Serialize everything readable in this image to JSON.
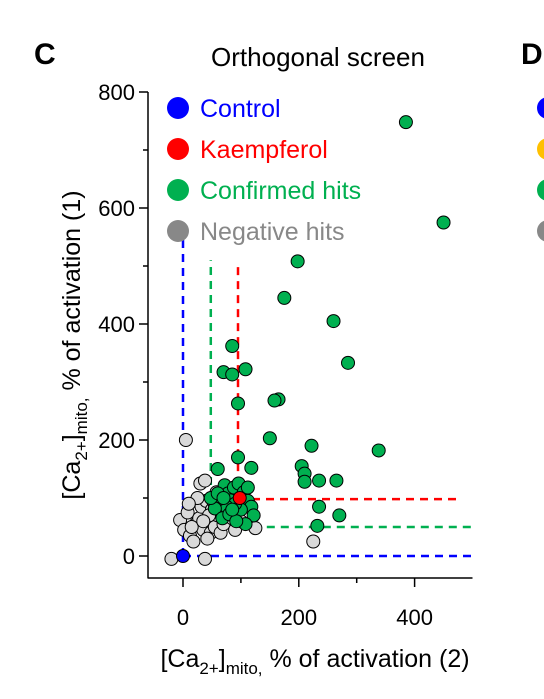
{
  "panel_label": "C",
  "next_panel_label": "D",
  "chart_data": {
    "type": "scatter",
    "title": "Orthogonal screen",
    "xlabel": {
      "base": "[Ca",
      "sub1": "2+",
      "mid": "]",
      "sub2": "mito,",
      "rest": " % of activation (2)"
    },
    "ylabel": {
      "base": "[Ca",
      "sub1": "2+",
      "mid": "]",
      "sub2": "mito,",
      "rest": " % of activation (1)"
    },
    "xlim": [
      -30,
      500
    ],
    "ylim": [
      -25,
      800
    ],
    "x_ticks": [
      0,
      200,
      400
    ],
    "x_tick_labels": [
      "0",
      "200",
      "400"
    ],
    "y_ticks": [
      0,
      200,
      400,
      600,
      800
    ],
    "y_tick_labels": [
      "0",
      "200",
      "400",
      "600",
      "800"
    ],
    "grid": false,
    "legend_position": "top-left",
    "legend": [
      {
        "label": "Control",
        "color": "#0000ff"
      },
      {
        "label": "Kaempferol",
        "color": "#ff0000"
      },
      {
        "label": "Confirmed hits",
        "color": "#00b050"
      },
      {
        "label": "Negative hits",
        "color": "#888888"
      }
    ],
    "next_panel_legend_colors": [
      "#0000ff",
      "#ffc000",
      "#00b050",
      "#888888"
    ],
    "threshold_lines": [
      {
        "series": "Control",
        "color": "#0000ff",
        "x": 0,
        "y": 0,
        "x_end": 500,
        "y_end": 560
      },
      {
        "series": "Confirmed hits",
        "color": "#00b050",
        "x": 48,
        "y": 50,
        "x_end": 500,
        "y_end": 510
      },
      {
        "series": "Kaempferol",
        "color": "#ff0000",
        "x": 95,
        "y": 98,
        "x_end": 480,
        "y_end": 500
      }
    ],
    "series": [
      {
        "name": "Negative hits",
        "color": "#d9d9d9",
        "points": [
          [
            -20,
            -5
          ],
          [
            5,
            200
          ],
          [
            38,
            -5
          ],
          [
            -5,
            62
          ],
          [
            2,
            45
          ],
          [
            8,
            75
          ],
          [
            12,
            35
          ],
          [
            18,
            25
          ],
          [
            22,
            55
          ],
          [
            28,
            65
          ],
          [
            32,
            85
          ],
          [
            35,
            45
          ],
          [
            40,
            95
          ],
          [
            45,
            60
          ],
          [
            48,
            40
          ],
          [
            30,
            125
          ],
          [
            38,
            130
          ],
          [
            50,
            80
          ],
          [
            55,
            50
          ],
          [
            60,
            70
          ],
          [
            65,
            40
          ],
          [
            25,
            100
          ],
          [
            15,
            50
          ],
          [
            42,
            30
          ],
          [
            70,
            55
          ],
          [
            75,
            75
          ],
          [
            85,
            65
          ],
          [
            90,
            45
          ],
          [
            100,
            60
          ],
          [
            125,
            48
          ],
          [
            225,
            25
          ],
          [
            52,
            95
          ],
          [
            58,
            110
          ],
          [
            45,
            70
          ],
          [
            62,
            85
          ],
          [
            68,
            95
          ],
          [
            10,
            90
          ],
          [
            35,
            60
          ]
        ]
      },
      {
        "name": "Confirmed hits",
        "color": "#00b050",
        "points": [
          [
            385,
            748
          ],
          [
            450,
            575
          ],
          [
            198,
            508
          ],
          [
            175,
            445
          ],
          [
            260,
            405
          ],
          [
            285,
            333
          ],
          [
            85,
            362
          ],
          [
            70,
            317
          ],
          [
            85,
            313
          ],
          [
            108,
            322
          ],
          [
            95,
            263
          ],
          [
            165,
            270
          ],
          [
            158,
            268
          ],
          [
            150,
            203
          ],
          [
            95,
            170
          ],
          [
            338,
            182
          ],
          [
            222,
            190
          ],
          [
            60,
            150
          ],
          [
            118,
            152
          ],
          [
            205,
            155
          ],
          [
            210,
            142
          ],
          [
            210,
            128
          ],
          [
            235,
            130
          ],
          [
            265,
            130
          ],
          [
            72,
            122
          ],
          [
            78,
            108
          ],
          [
            82,
            96
          ],
          [
            88,
            118
          ],
          [
            96,
            125
          ],
          [
            105,
            110
          ],
          [
            112,
            95
          ],
          [
            118,
            85
          ],
          [
            122,
            70
          ],
          [
            108,
            55
          ],
          [
            100,
            80
          ],
          [
            90,
            90
          ],
          [
            75,
            85
          ],
          [
            62,
            98
          ],
          [
            55,
            82
          ],
          [
            48,
            100
          ],
          [
            68,
            65
          ],
          [
            80,
            72
          ],
          [
            92,
            60
          ],
          [
            235,
            85
          ],
          [
            270,
            70
          ],
          [
            232,
            52
          ],
          [
            60,
            108
          ],
          [
            112,
            118
          ],
          [
            85,
            80
          ],
          [
            70,
            100
          ]
        ]
      },
      {
        "name": "Kaempferol",
        "color": "#ff0000",
        "points": [
          [
            98,
            100
          ]
        ]
      },
      {
        "name": "Control",
        "color": "#0000ff",
        "points": [
          [
            0,
            0
          ]
        ]
      }
    ]
  }
}
